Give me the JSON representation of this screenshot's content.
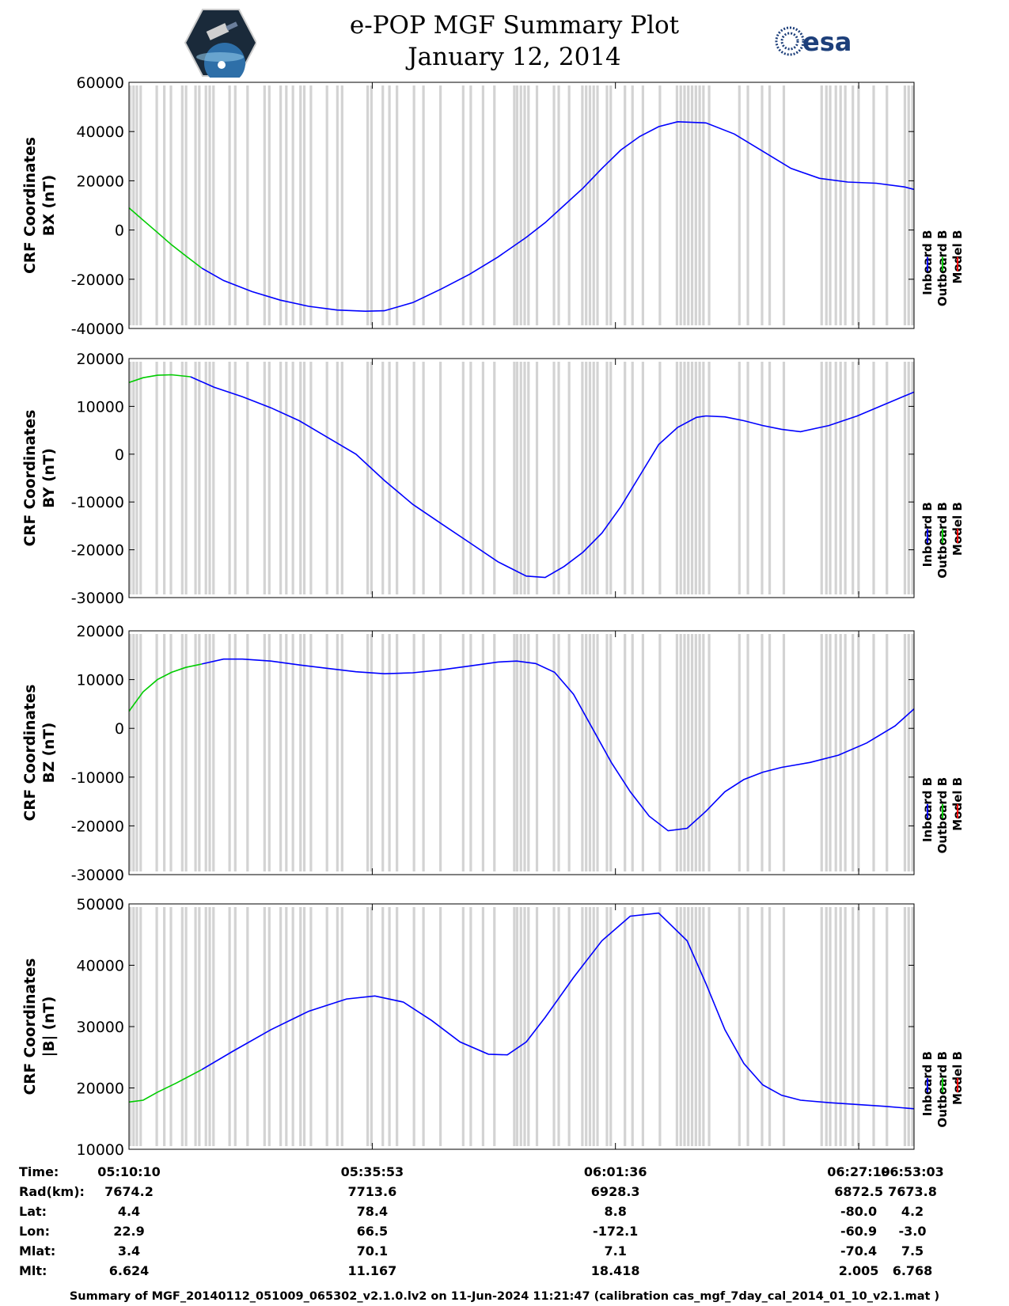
{
  "header": {
    "title": "e-POP MGF Summary Plot",
    "date": "January 12, 2014",
    "logo_left": "cassiope-satellite-logo",
    "logo_right": "esa-logo",
    "logo_right_text": "esa"
  },
  "legend": {
    "items": [
      {
        "label": "Inboard B",
        "color": "#0000ff"
      },
      {
        "label": "Outboard B",
        "color": "#00cc00"
      },
      {
        "label": "Model B",
        "color": "#ff0000"
      }
    ]
  },
  "gap_color": "#d3d3d3",
  "chart_data": [
    {
      "type": "line",
      "id": "bx",
      "ylabel_line1": "CRF Coordinates",
      "ylabel_line2": "BX (nT)",
      "ylim": [
        -40000,
        60000
      ],
      "yticks": [
        -40000,
        -20000,
        0,
        20000,
        40000,
        60000
      ],
      "ytick_labels": [
        "-40000",
        "-20000",
        "0",
        "20000",
        "40000",
        "60000"
      ],
      "x_minutes_since_0510": true,
      "series": [
        {
          "name": "Outboard B",
          "color": "#00cc00",
          "x": [
            0,
            1.5,
            3,
            4.5,
            6,
            7.7
          ],
          "y": [
            9000,
            4000,
            -1000,
            -6000,
            -10500,
            -15500
          ]
        },
        {
          "name": "Inboard B",
          "color": "#0000ff",
          "x": [
            7.7,
            10,
            13,
            16,
            19,
            22,
            25,
            27,
            30,
            33,
            36,
            39,
            42,
            44,
            46,
            48,
            50,
            52,
            54,
            56,
            58,
            61,
            64,
            67,
            70,
            73,
            76,
            79,
            82,
            83
          ],
          "y": [
            -15500,
            -20500,
            -25000,
            -28500,
            -31000,
            -32500,
            -33000,
            -32800,
            -29500,
            -24000,
            -18000,
            -11000,
            -3000,
            3000,
            10000,
            17000,
            25000,
            32500,
            38000,
            42000,
            44000,
            43500,
            39000,
            32000,
            25000,
            21000,
            19500,
            19000,
            17500,
            16500
          ]
        }
      ]
    },
    {
      "type": "line",
      "id": "by",
      "ylabel_line1": "CRF Coordinates",
      "ylabel_line2": "BY (nT)",
      "ylim": [
        -30000,
        20000
      ],
      "yticks": [
        -30000,
        -20000,
        -10000,
        0,
        10000,
        20000
      ],
      "ytick_labels": [
        "-30000",
        "-20000",
        "-10000",
        "0",
        "10000",
        "20000"
      ],
      "series": [
        {
          "name": "Outboard B",
          "color": "#00cc00",
          "x": [
            0,
            1.5,
            3,
            4.5,
            6.5
          ],
          "y": [
            15000,
            16000,
            16500,
            16600,
            16200
          ]
        },
        {
          "name": "Inboard B",
          "color": "#0000ff",
          "x": [
            6.5,
            9,
            12,
            15,
            18,
            21,
            24,
            27,
            30,
            33,
            36,
            39,
            42,
            44,
            46,
            48,
            50,
            52,
            54,
            56,
            58,
            60,
            61,
            63,
            65,
            67,
            69,
            71,
            74,
            77,
            80,
            83
          ],
          "y": [
            16200,
            14000,
            12000,
            9700,
            7000,
            3500,
            0,
            -5500,
            -10500,
            -14500,
            -18500,
            -22500,
            -25500,
            -25800,
            -23500,
            -20500,
            -16500,
            -11000,
            -4500,
            2000,
            5600,
            7700,
            8000,
            7800,
            7000,
            6000,
            5200,
            4700,
            6000,
            8000,
            10500,
            13000
          ]
        }
      ]
    },
    {
      "type": "line",
      "id": "bz",
      "ylabel_line1": "CRF Coordinates",
      "ylabel_line2": "BZ (nT)",
      "ylim": [
        -30000,
        20000
      ],
      "yticks": [
        -30000,
        -20000,
        -10000,
        0,
        10000,
        20000
      ],
      "ytick_labels": [
        "-30000",
        "-20000",
        "-10000",
        "0",
        "10000",
        "20000"
      ],
      "series": [
        {
          "name": "Outboard B",
          "color": "#00cc00",
          "x": [
            0,
            1.5,
            3,
            4.5,
            6,
            7.7
          ],
          "y": [
            3500,
            7500,
            10000,
            11500,
            12500,
            13200
          ]
        },
        {
          "name": "Inboard B",
          "color": "#0000ff",
          "x": [
            7.7,
            10,
            12,
            15,
            18,
            21,
            24,
            27,
            30,
            33,
            36,
            39,
            41,
            43,
            45,
            47,
            49,
            51,
            53,
            55,
            57,
            59,
            61,
            63,
            65,
            67,
            69,
            72,
            75,
            78,
            81,
            83
          ],
          "y": [
            13200,
            14200,
            14200,
            13800,
            13000,
            12300,
            11600,
            11200,
            11400,
            12000,
            12800,
            13600,
            13800,
            13300,
            11500,
            7000,
            0,
            -7000,
            -13000,
            -18000,
            -21000,
            -20500,
            -17000,
            -13000,
            -10500,
            -9000,
            -8000,
            -7000,
            -5500,
            -3000,
            500,
            4000
          ]
        }
      ]
    },
    {
      "type": "line",
      "id": "bmag",
      "ylabel_line1": "CRF Coordinates",
      "ylabel_line2": "|B| (nT)",
      "ylim": [
        10000,
        50000
      ],
      "yticks": [
        10000,
        20000,
        30000,
        40000,
        50000
      ],
      "ytick_labels": [
        "10000",
        "20000",
        "30000",
        "40000",
        "50000"
      ],
      "series": [
        {
          "name": "Outboard B",
          "color": "#00cc00",
          "x": [
            0,
            1.5,
            3,
            5,
            7.7
          ],
          "y": [
            17700,
            18000,
            19300,
            20800,
            23000
          ]
        },
        {
          "name": "Inboard B",
          "color": "#0000ff",
          "x": [
            7.7,
            11,
            15,
            19,
            23,
            26,
            29,
            32,
            35,
            38,
            40,
            42,
            44,
            47,
            50,
            53,
            56,
            59,
            61,
            63,
            65,
            67,
            69,
            71,
            74,
            77,
            80,
            83
          ],
          "y": [
            23000,
            26000,
            29500,
            32500,
            34500,
            35000,
            34000,
            31000,
            27500,
            25500,
            25400,
            27500,
            31500,
            38000,
            44000,
            48000,
            48500,
            44000,
            37000,
            29500,
            24000,
            20500,
            18800,
            18000,
            17600,
            17300,
            17000,
            16600
          ]
        }
      ]
    }
  ],
  "gap_times_minutes": [
    0,
    0.35,
    0.7,
    1.1,
    2.8,
    3.6,
    4.3,
    5.5,
    5.9,
    6.9,
    7.3,
    8.0,
    8.4,
    8.8,
    10.5,
    11.1,
    12.4,
    14.2,
    14.7,
    15.9,
    16.5,
    17.2,
    18.0,
    18.4,
    19.1,
    20.8,
    21.9,
    22.4,
    25.1,
    25.5,
    26.7,
    27.4,
    28.2,
    30.0,
    31.0,
    32.8,
    35.2,
    36.0,
    37.3,
    38.5,
    40.6,
    40.9,
    41.3,
    41.7,
    42.1,
    43.0,
    44.8,
    45.3,
    46.4,
    47.8,
    48.2,
    48.6,
    49.0,
    49.4,
    50.4,
    50.8,
    52.3,
    53.1,
    54.2,
    56.0,
    57.8,
    58.2,
    58.6,
    59.0,
    59.4,
    59.8,
    60.2,
    60.6,
    61.2,
    64.4,
    65.3,
    66.8,
    67.6,
    69.1,
    73.1,
    73.6,
    74.0,
    74.6,
    75.1,
    75.6,
    76.4,
    77.0,
    78.6,
    80.0,
    81.9,
    82.3,
    82.7,
    83.0
  ],
  "time_axis": {
    "xlim_minutes": [
      0,
      83
    ],
    "major_tick_minutes": [
      0,
      25.72,
      51.43,
      77.15
    ]
  },
  "ephemeris": {
    "row_labels": [
      "Time:",
      "Rad(km):",
      "Lat:",
      "Lon:",
      "Mlat:",
      "Mlt:"
    ],
    "columns": [
      [
        "05:10:10",
        "7674.2",
        "4.4",
        "22.9",
        "3.4",
        "6.624"
      ],
      [
        "05:35:53",
        "7713.6",
        "78.4",
        "66.5",
        "70.1",
        "11.167"
      ],
      [
        "06:01:36",
        "6928.3",
        "8.8",
        "-172.1",
        "7.1",
        "18.418"
      ],
      [
        "06:27:19",
        "6872.5",
        "-80.0",
        "-60.9",
        "-70.4",
        "2.005"
      ],
      [
        "06:53:03",
        "7673.8",
        "4.2",
        "-3.0",
        "7.5",
        "6.768"
      ]
    ]
  },
  "footer": "Summary of MGF_20140112_051009_065302_v2.1.0.lv2 on 11-Jun-2024 11:21:47 (calibration cas_mgf_7day_cal_2014_01_10_v2.1.mat )"
}
